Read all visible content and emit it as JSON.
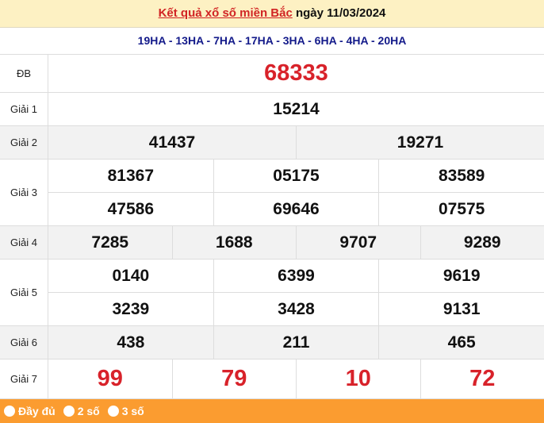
{
  "header": {
    "link": "Kết quả xổ số miền Bắc",
    "date_text": " ngày 11/03/2024"
  },
  "codes": "19HA - 13HA - 7HA - 17HA - 3HA - 6HA - 4HA - 20HA",
  "prizes": [
    {
      "label": "ĐB",
      "rows": [
        [
          "68333"
        ]
      ]
    },
    {
      "label": "Giải 1",
      "rows": [
        [
          "15214"
        ]
      ]
    },
    {
      "label": "Giải 2",
      "rows": [
        [
          "41437",
          "19271"
        ]
      ]
    },
    {
      "label": "Giải 3",
      "rows": [
        [
          "81367",
          "05175",
          "83589"
        ],
        [
          "47586",
          "69646",
          "07575"
        ]
      ]
    },
    {
      "label": "Giải 4",
      "rows": [
        [
          "7285",
          "1688",
          "9707",
          "9289"
        ]
      ]
    },
    {
      "label": "Giải 5",
      "rows": [
        [
          "0140",
          "6399",
          "9619"
        ],
        [
          "3239",
          "3428",
          "9131"
        ]
      ]
    },
    {
      "label": "Giải 6",
      "rows": [
        [
          "438",
          "211",
          "465"
        ]
      ]
    },
    {
      "label": "Giải 7",
      "rows": [
        [
          "99",
          "79",
          "10",
          "72"
        ]
      ]
    }
  ],
  "footer": {
    "options": [
      "Đầy đủ",
      "2 số",
      "3 số"
    ]
  },
  "colors": {
    "header_bg": "#fdf1c3",
    "red": "#d8222a",
    "navy": "#131a8a",
    "footer_bg": "#fb9c30"
  }
}
